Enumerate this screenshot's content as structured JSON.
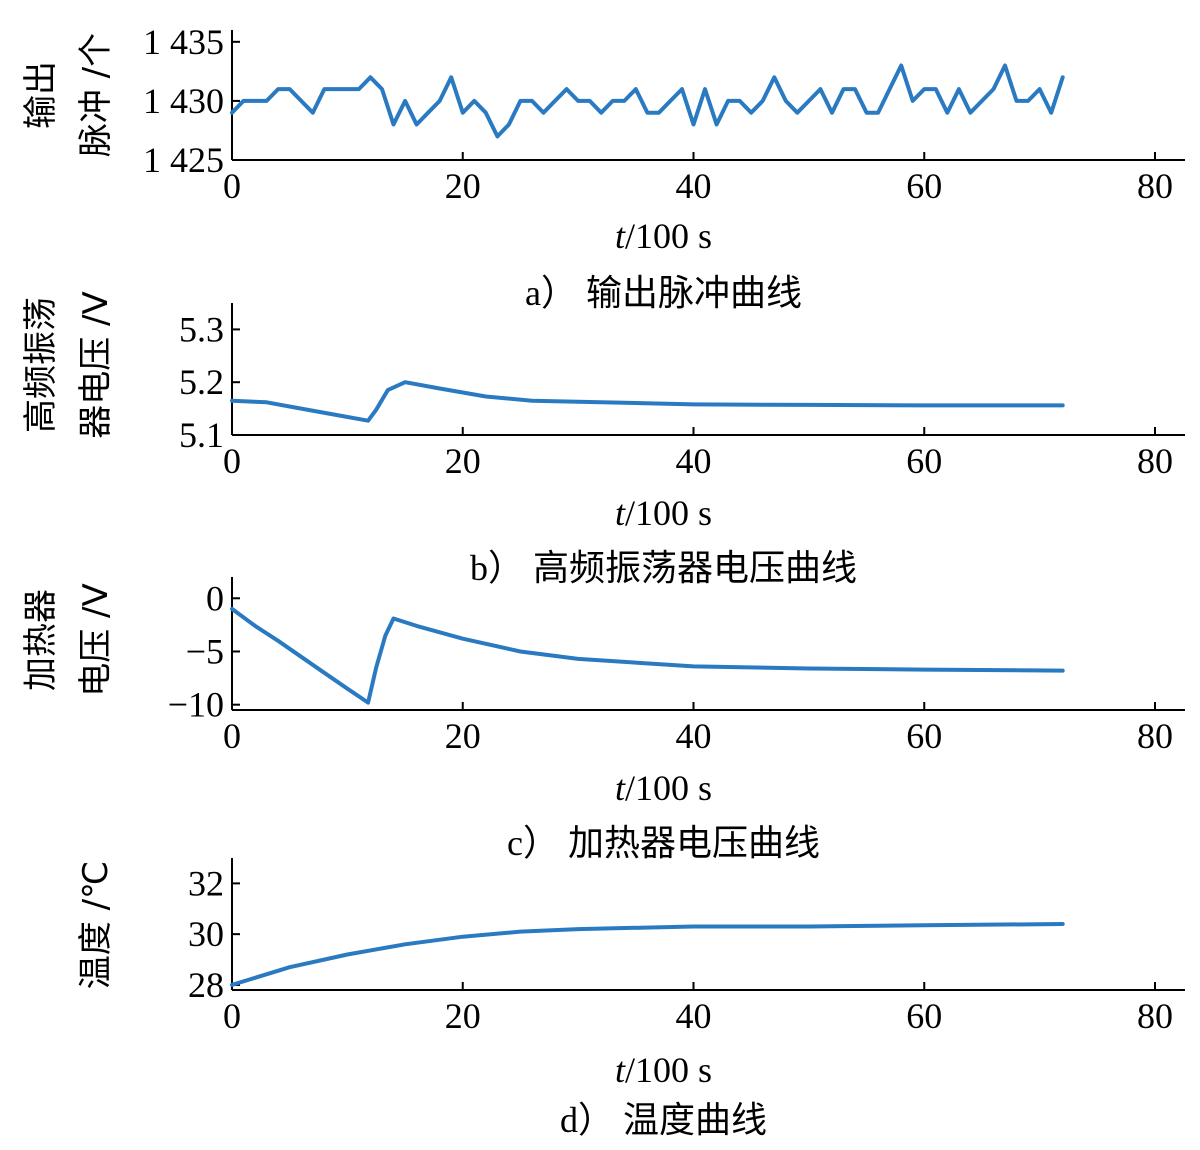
{
  "colors": {
    "line": "#2a7ac2",
    "axis": "#000000",
    "background": "#ffffff"
  },
  "chart_data": [
    {
      "type": "line",
      "panel": "a)",
      "caption_label": "a）",
      "caption": "输出脉冲曲线",
      "xlabel_italic": "t",
      "xlabel_rest": "/100 s",
      "ylabel_lines": [
        "输出",
        "脉冲 /个"
      ],
      "xlim": [
        0,
        80
      ],
      "ylim": [
        1425,
        1436
      ],
      "xticks": [
        0,
        20,
        40,
        60,
        80
      ],
      "xtick_labels": [
        "0",
        "20",
        "40",
        "60",
        "80"
      ],
      "yticks": [
        1425,
        1430,
        1435
      ],
      "ytick_labels": [
        "1 425",
        "1 430",
        "1 435"
      ],
      "grid": false,
      "series": [
        {
          "x": [
            0,
            1,
            2,
            3,
            4,
            5,
            6,
            7,
            8,
            9,
            10,
            11,
            12,
            13,
            14,
            15,
            16,
            17,
            18,
            19,
            20,
            21,
            22,
            23,
            24,
            25,
            26,
            27,
            28,
            29,
            30,
            31,
            32,
            33,
            34,
            35,
            36,
            37,
            38,
            39,
            40,
            41,
            42,
            43,
            44,
            45,
            46,
            47,
            48,
            49,
            50,
            51,
            52,
            53,
            54,
            55,
            56,
            57,
            58,
            59,
            60,
            61,
            62,
            63,
            64,
            65,
            66,
            67,
            68,
            69,
            70,
            71,
            72
          ],
          "y": [
            1429,
            1430,
            1430,
            1430,
            1431,
            1431,
            1430,
            1429,
            1431,
            1431,
            1431,
            1431,
            1432,
            1431,
            1428,
            1430,
            1428,
            1429,
            1430,
            1432,
            1429,
            1430,
            1429,
            1427,
            1428,
            1430,
            1430,
            1429,
            1430,
            1431,
            1430,
            1430,
            1429,
            1430,
            1430,
            1431,
            1429,
            1429,
            1430,
            1431,
            1428,
            1431,
            1428,
            1430,
            1430,
            1429,
            1430,
            1432,
            1430,
            1429,
            1430,
            1431,
            1429,
            1431,
            1431,
            1429,
            1429,
            1431,
            1433,
            1430,
            1431,
            1431,
            1429,
            1431,
            1429,
            1430,
            1431,
            1433,
            1430,
            1430,
            1431,
            1429,
            1432
          ]
        }
      ]
    },
    {
      "type": "line",
      "panel": "b)",
      "caption_label": "b）",
      "caption": "高频振荡器电压曲线",
      "xlabel_italic": "t",
      "xlabel_rest": "/100 s",
      "ylabel_lines": [
        "高频振荡",
        "器电压 /V"
      ],
      "xlim": [
        0,
        80
      ],
      "ylim": [
        5.1,
        5.35
      ],
      "xticks": [
        0,
        20,
        40,
        60,
        80
      ],
      "xtick_labels": [
        "0",
        "20",
        "40",
        "60",
        "80"
      ],
      "yticks": [
        5.1,
        5.2,
        5.3
      ],
      "ytick_labels": [
        "5.1",
        "5.2",
        "5.3"
      ],
      "grid": false,
      "series": [
        {
          "x": [
            0,
            3,
            6,
            9,
            11.8,
            12.5,
            13.5,
            15,
            18,
            22,
            26,
            30,
            40,
            50,
            60,
            72
          ],
          "y": [
            5.165,
            5.162,
            5.15,
            5.138,
            5.127,
            5.148,
            5.185,
            5.2,
            5.188,
            5.173,
            5.165,
            5.163,
            5.158,
            5.157,
            5.156,
            5.156
          ]
        }
      ]
    },
    {
      "type": "line",
      "panel": "c)",
      "caption_label": "c）",
      "caption": "加热器电压曲线",
      "xlabel_italic": "t",
      "xlabel_rest": "/100 s",
      "ylabel_lines": [
        "加热器",
        "电压 /V"
      ],
      "xlim": [
        0,
        80
      ],
      "ylim": [
        -10.5,
        2
      ],
      "xticks": [
        0,
        20,
        40,
        60,
        80
      ],
      "xtick_labels": [
        "0",
        "20",
        "40",
        "60",
        "80"
      ],
      "yticks": [
        -10,
        -5,
        0
      ],
      "ytick_labels": [
        "−10",
        "−5",
        "0"
      ],
      "grid": false,
      "series": [
        {
          "x": [
            0,
            2,
            4,
            6,
            8,
            10,
            11.8,
            12.5,
            13.3,
            14,
            16,
            20,
            25,
            30,
            40,
            50,
            60,
            72
          ],
          "y": [
            -1,
            -2.6,
            -4.0,
            -5.5,
            -7.0,
            -8.5,
            -9.8,
            -6.5,
            -3.5,
            -1.9,
            -2.6,
            -3.8,
            -5.0,
            -5.7,
            -6.4,
            -6.6,
            -6.7,
            -6.8
          ]
        }
      ]
    },
    {
      "type": "line",
      "panel": "d)",
      "caption_label": "d）",
      "caption": "温度曲线",
      "xlabel_italic": "t",
      "xlabel_rest": "/100 s",
      "ylabel_lines": [
        "温度 /℃"
      ],
      "xlim": [
        0,
        80
      ],
      "ylim": [
        27.8,
        33
      ],
      "xticks": [
        0,
        20,
        40,
        60,
        80
      ],
      "xtick_labels": [
        "0",
        "20",
        "40",
        "60",
        "80"
      ],
      "yticks": [
        28,
        30,
        32
      ],
      "ytick_labels": [
        "28",
        "30",
        "32"
      ],
      "grid": false,
      "series": [
        {
          "x": [
            0,
            5,
            10,
            15,
            20,
            25,
            30,
            40,
            50,
            60,
            72
          ],
          "y": [
            28.0,
            28.7,
            29.2,
            29.6,
            29.9,
            30.1,
            30.2,
            30.3,
            30.3,
            30.35,
            30.4
          ]
        }
      ]
    }
  ]
}
